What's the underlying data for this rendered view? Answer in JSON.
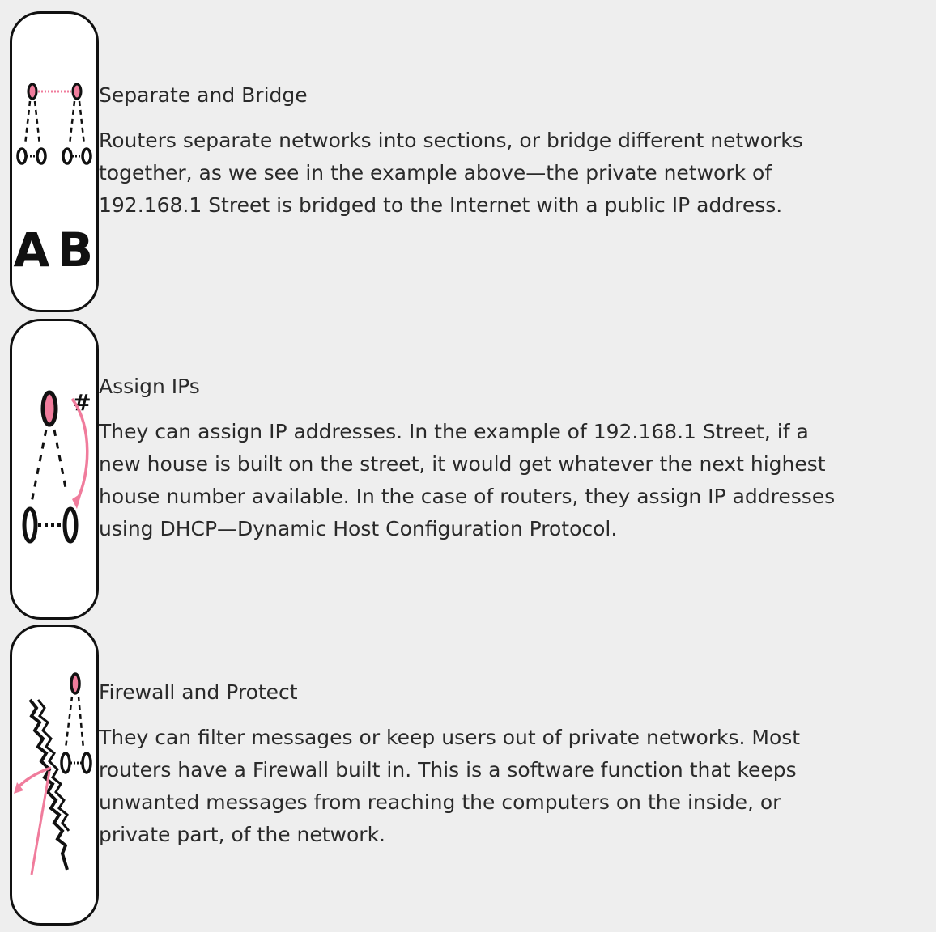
{
  "colors": {
    "background": "#eeeeee",
    "accent_pink": "#f07c9c",
    "text": "#2a2a2a",
    "outline": "#111111"
  },
  "items": [
    {
      "icon": "separate-bridge-icon",
      "title": "Separate and Bridge",
      "body": "Routers separate networks into sections, or bridge different networks together, as we see in the example above—the private network of 192.168.1 Street is bridged to the Internet with a public IP address.",
      "icon_letters": [
        "A",
        "B"
      ]
    },
    {
      "icon": "assign-ips-icon",
      "title": "Assign IPs",
      "body": "They can assign IP addresses. In the example of 192.168.1 Street, if a new house is built on the street, it would get whatever the next highest house number available. In the case of routers, they assign IP addresses using DHCP—Dynamic Host Configuration Protocol.",
      "icon_symbol": "#"
    },
    {
      "icon": "firewall-protect-icon",
      "title": "Firewall and Protect",
      "body": "They can filter messages or keep users out of private networks. Most routers have a Firewall built in. This is a software function that keeps unwanted messages from reaching the computers on the inside, or private part, of the network."
    }
  ]
}
